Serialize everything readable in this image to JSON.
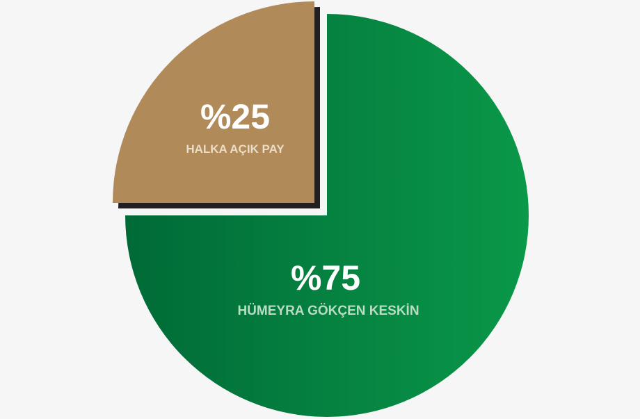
{
  "chart_data": {
    "type": "pie",
    "slices": [
      {
        "label": "HÜMEYRA GÖKÇEN KESKİN",
        "value": 75,
        "value_label": "%75",
        "color": "#007a3d",
        "label_color": "#b9dcc3"
      },
      {
        "label": "HALKA AÇIK PAY",
        "value": 25,
        "value_label": "%25",
        "color": "#b08a58",
        "label_color": "#eadcc6",
        "exploded": true
      }
    ],
    "legend": "none",
    "gradient": [
      "#006a37",
      "#0a9849"
    ],
    "shadow_color": "#231f20"
  }
}
